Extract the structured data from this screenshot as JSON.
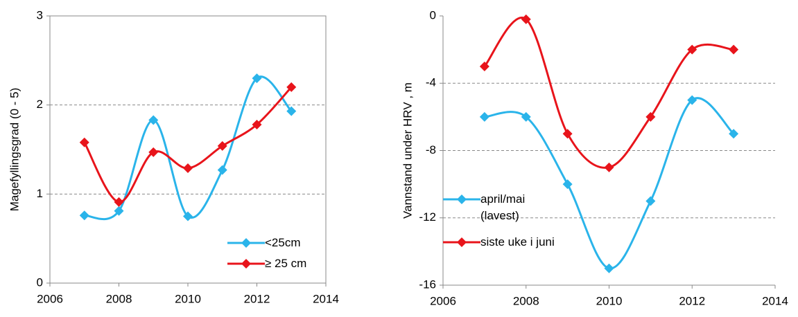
{
  "chart_data": [
    {
      "type": "line",
      "ylabel": "Magefyllingsgrad (0 - 5)",
      "x": [
        2007,
        2008,
        2009,
        2010,
        2011,
        2012,
        2013
      ],
      "series": [
        {
          "name": "<25cm",
          "color": "#2ab4ea",
          "values": [
            0.76,
            0.81,
            1.83,
            0.75,
            1.27,
            2.3,
            1.93
          ]
        },
        {
          "name": "≥ 25 cm",
          "color": "#e8141b",
          "values": [
            1.58,
            0.91,
            1.47,
            1.29,
            1.54,
            1.78,
            2.2
          ]
        }
      ],
      "xlim": [
        2006,
        2014
      ],
      "xticks": [
        2006,
        2008,
        2010,
        2012,
        2014
      ],
      "ylim": [
        0,
        3
      ],
      "yticks": [
        0,
        1,
        2,
        3
      ],
      "grid": true,
      "legend": "lower right",
      "frame": true
    },
    {
      "type": "line",
      "ylabel": "Vannstand  under  HRV , m",
      "x": [
        2007,
        2008,
        2009,
        2010,
        2011,
        2012,
        2013
      ],
      "series": [
        {
          "name": "april/mai (lavest)",
          "color": "#2ab4ea",
          "values": [
            -6,
            -6,
            -10,
            -15,
            -11,
            -5,
            -7
          ]
        },
        {
          "name": "siste uke i juni",
          "color": "#e8141b",
          "values": [
            -3,
            -0.2,
            -7,
            -9,
            -6,
            -2,
            -2
          ]
        }
      ],
      "xlim": [
        2006,
        2014
      ],
      "xticks": [
        2006,
        2008,
        2010,
        2012,
        2014
      ],
      "ylim": [
        -16,
        0
      ],
      "yticks": [
        0,
        -4,
        -8,
        -12,
        -16
      ],
      "grid": true,
      "legend": "center left",
      "frame": false
    }
  ]
}
